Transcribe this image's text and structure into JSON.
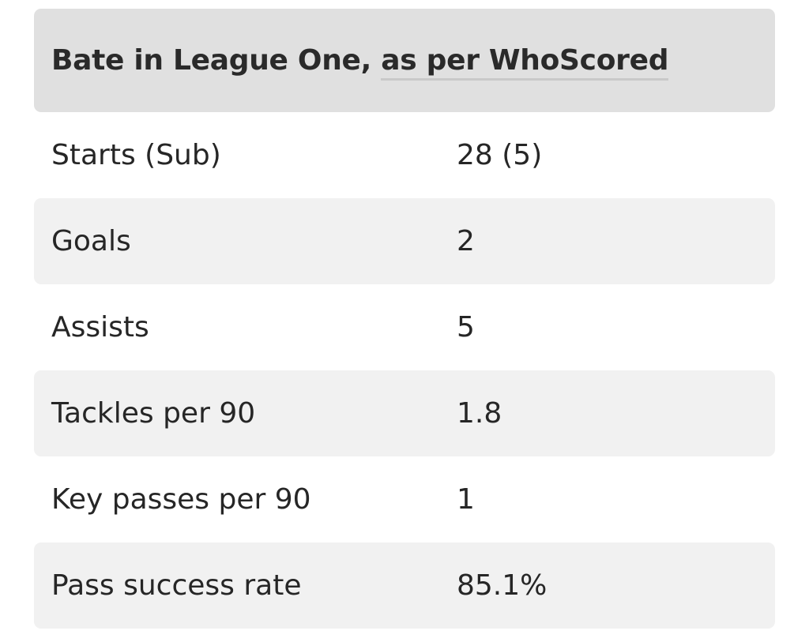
{
  "table": {
    "title_prefix": "Bate in League One, ",
    "title_link": "as per WhoScored",
    "rows": [
      {
        "label": "Starts (Sub)",
        "value": "28 (5)"
      },
      {
        "label": "Goals",
        "value": "2"
      },
      {
        "label": "Assists",
        "value": "5"
      },
      {
        "label": "Tackles per 90",
        "value": "1.8"
      },
      {
        "label": "Key passes per 90",
        "value": "1"
      },
      {
        "label": "Pass success rate",
        "value": "85.1%"
      }
    ]
  },
  "colors": {
    "header_bg": "#e0e0e0",
    "stripe_bg": "#f1f1f1",
    "text": "#262626",
    "link_underline": "#c9c9c9"
  }
}
